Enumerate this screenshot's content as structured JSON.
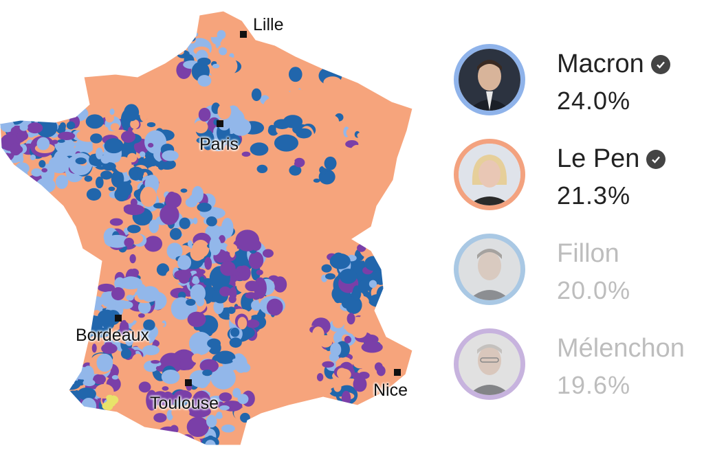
{
  "map": {
    "cities": [
      {
        "name": "Lille",
        "id": "lille"
      },
      {
        "name": "Paris",
        "id": "paris"
      },
      {
        "name": "Bordeaux",
        "id": "bordeaux"
      },
      {
        "name": "Toulouse",
        "id": "toulouse"
      },
      {
        "name": "Nice",
        "id": "nice"
      }
    ],
    "colors": {
      "macron_dark": "#2166ac",
      "macron_light": "#92b7ea",
      "lepen": "#f6a47c",
      "melenchon": "#7a3fa8",
      "other": "#e8e36a"
    }
  },
  "candidates": [
    {
      "name": "Macron",
      "pct": "24.0%",
      "winner": true,
      "ring": "#8fb3ea",
      "icon": "check-icon"
    },
    {
      "name": "Le Pen",
      "pct": "21.3%",
      "winner": true,
      "ring": "#f3a27f",
      "icon": "check-icon"
    },
    {
      "name": "Fillon",
      "pct": "20.0%",
      "winner": false,
      "ring": "#a9c8e4"
    },
    {
      "name": "Mélenchon",
      "pct": "19.6%",
      "winner": false,
      "ring": "#c7b3de"
    }
  ]
}
